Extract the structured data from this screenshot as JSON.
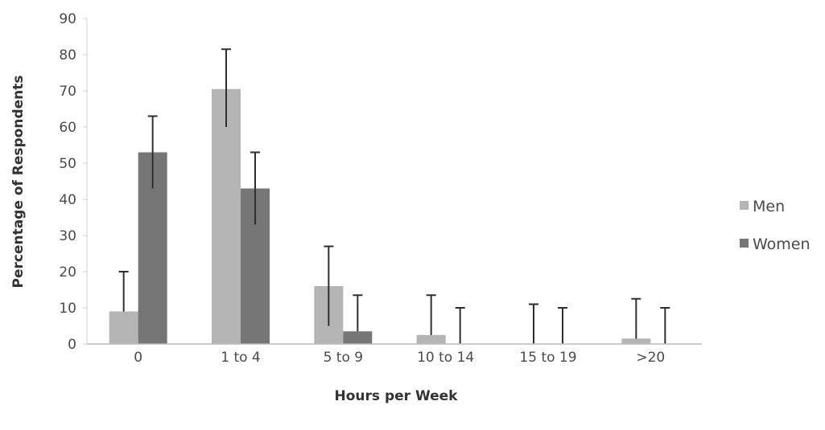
{
  "chart_data": {
    "type": "bar",
    "title": "",
    "xlabel": "Hours per Week",
    "ylabel": "Percentage of Respondents",
    "categories": [
      "0",
      "1 to 4",
      "5 to 9",
      "10 to 14",
      "15 to 19",
      ">20"
    ],
    "ylim": [
      0,
      90
    ],
    "yticks": [
      "0",
      "10",
      "20",
      "30",
      "40",
      "50",
      "60",
      "70",
      "80",
      "90"
    ],
    "grid": false,
    "legend_position": "right",
    "series": [
      {
        "name": "Men",
        "color": "#b4b4b4",
        "values": [
          9,
          70.5,
          16,
          2.5,
          0,
          1.5
        ],
        "error_upper": [
          20,
          81.5,
          27,
          13.5,
          11,
          12.5
        ],
        "error_lower": [
          9,
          60,
          5,
          2.5,
          0,
          1.5
        ]
      },
      {
        "name": "Women",
        "color": "#767676",
        "values": [
          53,
          43,
          3.5,
          0,
          0,
          0
        ],
        "error_upper": [
          63,
          53,
          13.5,
          10,
          10,
          10
        ],
        "error_lower": [
          43,
          33,
          3.5,
          0,
          0,
          0
        ]
      }
    ]
  }
}
